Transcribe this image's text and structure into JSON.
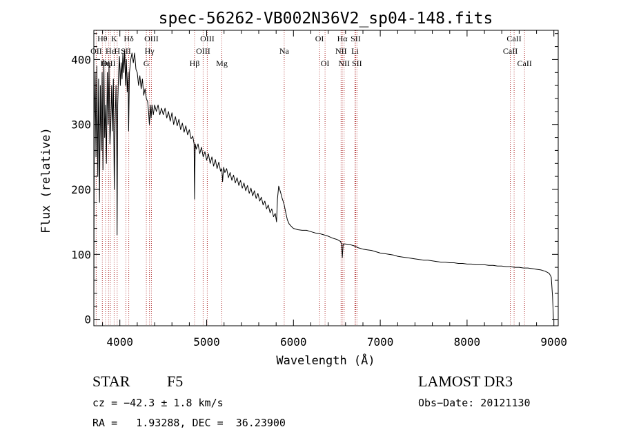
{
  "chart_data": {
    "type": "line",
    "title": "spec-56262-VB002N36V2_sp04-148.fits",
    "xlabel": "Wavelength (Å)",
    "ylabel": "Flux (relative)",
    "xlim": [
      3700,
      9050
    ],
    "ylim": [
      -10,
      445
    ],
    "x_ticks": [
      4000,
      5000,
      6000,
      7000,
      8000,
      9000
    ],
    "y_ticks": [
      0,
      100,
      200,
      300,
      400
    ],
    "x_minor_step": 200,
    "y_minor_step": 20,
    "line_color": "#000000",
    "marker_color": "#b03030",
    "spectrum": [
      [
        3700,
        5
      ],
      [
        3705,
        300
      ],
      [
        3715,
        380
      ],
      [
        3725,
        250
      ],
      [
        3735,
        390
      ],
      [
        3745,
        220
      ],
      [
        3755,
        370
      ],
      [
        3765,
        180
      ],
      [
        3775,
        360
      ],
      [
        3785,
        260
      ],
      [
        3795,
        380
      ],
      [
        3805,
        230
      ],
      [
        3815,
        400
      ],
      [
        3825,
        280
      ],
      [
        3835,
        330
      ],
      [
        3845,
        240
      ],
      [
        3855,
        380
      ],
      [
        3865,
        300
      ],
      [
        3875,
        390
      ],
      [
        3885,
        270
      ],
      [
        3895,
        300
      ],
      [
        3905,
        360
      ],
      [
        3915,
        290
      ],
      [
        3925,
        370
      ],
      [
        3935,
        200
      ],
      [
        3945,
        300
      ],
      [
        3955,
        360
      ],
      [
        3965,
        250
      ],
      [
        3968,
        130
      ],
      [
        3975,
        330
      ],
      [
        3985,
        380
      ],
      [
        3995,
        405
      ],
      [
        4005,
        360
      ],
      [
        4015,
        395
      ],
      [
        4025,
        370
      ],
      [
        4035,
        410
      ],
      [
        4045,
        380
      ],
      [
        4055,
        415
      ],
      [
        4065,
        360
      ],
      [
        4075,
        400
      ],
      [
        4085,
        350
      ],
      [
        4095,
        380
      ],
      [
        4101,
        290
      ],
      [
        4110,
        380
      ],
      [
        4125,
        400
      ],
      [
        4140,
        410
      ],
      [
        4155,
        395
      ],
      [
        4170,
        410
      ],
      [
        4185,
        385
      ],
      [
        4200,
        380
      ],
      [
        4215,
        360
      ],
      [
        4230,
        375
      ],
      [
        4245,
        355
      ],
      [
        4260,
        370
      ],
      [
        4275,
        345
      ],
      [
        4290,
        355
      ],
      [
        4305,
        340
      ],
      [
        4320,
        335
      ],
      [
        4330,
        320
      ],
      [
        4340,
        300
      ],
      [
        4350,
        330
      ],
      [
        4360,
        310
      ],
      [
        4370,
        330
      ],
      [
        4385,
        315
      ],
      [
        4400,
        330
      ],
      [
        4420,
        320
      ],
      [
        4440,
        330
      ],
      [
        4460,
        315
      ],
      [
        4480,
        325
      ],
      [
        4500,
        315
      ],
      [
        4520,
        325
      ],
      [
        4540,
        310
      ],
      [
        4560,
        320
      ],
      [
        4580,
        305
      ],
      [
        4600,
        318
      ],
      [
        4620,
        300
      ],
      [
        4640,
        312
      ],
      [
        4660,
        298
      ],
      [
        4680,
        308
      ],
      [
        4700,
        292
      ],
      [
        4720,
        302
      ],
      [
        4740,
        288
      ],
      [
        4760,
        298
      ],
      [
        4780,
        284
      ],
      [
        4800,
        292
      ],
      [
        4820,
        278
      ],
      [
        4840,
        282
      ],
      [
        4855,
        270
      ],
      [
        4861,
        185
      ],
      [
        4868,
        270
      ],
      [
        4880,
        262
      ],
      [
        4900,
        270
      ],
      [
        4920,
        255
      ],
      [
        4940,
        265
      ],
      [
        4960,
        250
      ],
      [
        4980,
        258
      ],
      [
        5000,
        245
      ],
      [
        5020,
        255
      ],
      [
        5040,
        240
      ],
      [
        5060,
        250
      ],
      [
        5080,
        236
      ],
      [
        5100,
        246
      ],
      [
        5120,
        232
      ],
      [
        5140,
        242
      ],
      [
        5160,
        228
      ],
      [
        5175,
        232
      ],
      [
        5183,
        212
      ],
      [
        5195,
        234
      ],
      [
        5210,
        226
      ],
      [
        5230,
        232
      ],
      [
        5250,
        218
      ],
      [
        5270,
        226
      ],
      [
        5290,
        214
      ],
      [
        5310,
        222
      ],
      [
        5330,
        210
      ],
      [
        5350,
        218
      ],
      [
        5370,
        206
      ],
      [
        5390,
        214
      ],
      [
        5410,
        202
      ],
      [
        5430,
        210
      ],
      [
        5450,
        198
      ],
      [
        5470,
        206
      ],
      [
        5490,
        194
      ],
      [
        5510,
        202
      ],
      [
        5530,
        190
      ],
      [
        5550,
        198
      ],
      [
        5570,
        186
      ],
      [
        5590,
        194
      ],
      [
        5610,
        182
      ],
      [
        5630,
        188
      ],
      [
        5650,
        176
      ],
      [
        5670,
        182
      ],
      [
        5690,
        170
      ],
      [
        5710,
        176
      ],
      [
        5730,
        164
      ],
      [
        5750,
        170
      ],
      [
        5770,
        158
      ],
      [
        5790,
        163
      ],
      [
        5805,
        150
      ],
      [
        5815,
        185
      ],
      [
        5830,
        205
      ],
      [
        5850,
        196
      ],
      [
        5870,
        186
      ],
      [
        5890,
        178
      ],
      [
        5910,
        165
      ],
      [
        5930,
        153
      ],
      [
        5950,
        147
      ],
      [
        5975,
        143
      ],
      [
        6000,
        140
      ],
      [
        6050,
        138
      ],
      [
        6100,
        137
      ],
      [
        6150,
        137
      ],
      [
        6200,
        135
      ],
      [
        6250,
        133
      ],
      [
        6300,
        132
      ],
      [
        6350,
        130
      ],
      [
        6400,
        128
      ],
      [
        6450,
        125
      ],
      [
        6500,
        123
      ],
      [
        6540,
        120
      ],
      [
        6555,
        116
      ],
      [
        6563,
        95
      ],
      [
        6572,
        116
      ],
      [
        6600,
        116
      ],
      [
        6650,
        115
      ],
      [
        6700,
        113
      ],
      [
        6750,
        110
      ],
      [
        6800,
        108
      ],
      [
        6850,
        107
      ],
      [
        6900,
        106
      ],
      [
        6950,
        104
      ],
      [
        7000,
        102
      ],
      [
        7050,
        101
      ],
      [
        7100,
        100
      ],
      [
        7150,
        99
      ],
      [
        7200,
        97
      ],
      [
        7250,
        96
      ],
      [
        7300,
        95
      ],
      [
        7350,
        94
      ],
      [
        7400,
        93
      ],
      [
        7450,
        92
      ],
      [
        7500,
        91
      ],
      [
        7550,
        91
      ],
      [
        7600,
        90
      ],
      [
        7650,
        89
      ],
      [
        7700,
        88
      ],
      [
        7750,
        88
      ],
      [
        7800,
        87
      ],
      [
        7850,
        87
      ],
      [
        7900,
        86
      ],
      [
        7950,
        86
      ],
      [
        8000,
        85
      ],
      [
        8050,
        85
      ],
      [
        8100,
        84
      ],
      [
        8150,
        84
      ],
      [
        8200,
        84
      ],
      [
        8250,
        83
      ],
      [
        8300,
        83
      ],
      [
        8350,
        82
      ],
      [
        8400,
        82
      ],
      [
        8450,
        81
      ],
      [
        8500,
        81
      ],
      [
        8550,
        80
      ],
      [
        8600,
        80
      ],
      [
        8650,
        79
      ],
      [
        8700,
        79
      ],
      [
        8750,
        78
      ],
      [
        8800,
        77
      ],
      [
        8850,
        76
      ],
      [
        8900,
        74
      ],
      [
        8930,
        72
      ],
      [
        8950,
        70
      ],
      [
        8970,
        65
      ],
      [
        8985,
        35
      ],
      [
        8995,
        0
      ]
    ],
    "lines": [
      {
        "name": "Hθ",
        "x": 3798,
        "row": 0
      },
      {
        "name": "OII",
        "x": 3727,
        "row": 1
      },
      {
        "name": "OIII",
        "x": 3869,
        "row": 2
      },
      {
        "name": "Hε",
        "x": 3889,
        "row": 1
      },
      {
        "name": "K",
        "x": 3934,
        "row": 0
      },
      {
        "name": "H",
        "x": 3969,
        "row": 1
      },
      {
        "name": "Hη",
        "x": 3835,
        "row": 2
      },
      {
        "name": "Hδ",
        "x": 4102,
        "row": 0
      },
      {
        "name": "SII",
        "x": 4070,
        "row": 1
      },
      {
        "name": "OIII",
        "x": 4363,
        "row": 0
      },
      {
        "name": "Hγ",
        "x": 4341,
        "row": 1
      },
      {
        "name": "G",
        "x": 4305,
        "row": 2
      },
      {
        "name": "Hβ",
        "x": 4861,
        "row": 2
      },
      {
        "name": "OIII",
        "x": 5007,
        "row": 0
      },
      {
        "name": "OIII",
        "x": 4959,
        "row": 1
      },
      {
        "name": "Mg",
        "x": 5175,
        "row": 2
      },
      {
        "name": "Na",
        "x": 5893,
        "row": 1
      },
      {
        "name": "OI",
        "x": 6300,
        "row": 0
      },
      {
        "name": "OI",
        "x": 6364,
        "row": 2
      },
      {
        "name": "Hα",
        "x": 6563,
        "row": 0
      },
      {
        "name": "NII",
        "x": 6548,
        "row": 1
      },
      {
        "name": "NII",
        "x": 6583,
        "row": 2
      },
      {
        "name": "SII",
        "x": 6716,
        "row": 0
      },
      {
        "name": "Li",
        "x": 6708,
        "row": 1
      },
      {
        "name": "SII",
        "x": 6731,
        "row": 2
      },
      {
        "name": "CaII",
        "x": 8542,
        "row": 0
      },
      {
        "name": "CaII",
        "x": 8498,
        "row": 1
      },
      {
        "name": "CaII",
        "x": 8662,
        "row": 2
      }
    ]
  },
  "info": {
    "object_type": "STAR",
    "subclass": "F5",
    "survey": "LAMOST DR3",
    "redshift": "cz = −42.3 ± 1.8 km/s",
    "obs_date": "Obs−Date: 20121130",
    "coords": "RA =   1.93288, DEC =  36.23900"
  }
}
